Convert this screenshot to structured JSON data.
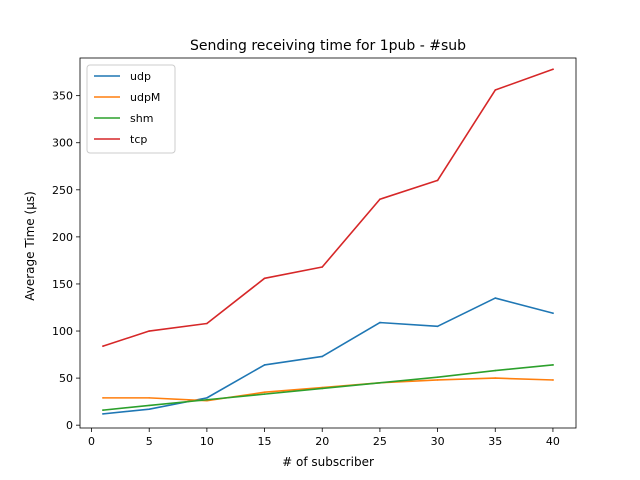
{
  "chart_data": {
    "type": "line",
    "title": "Sending receiving time for 1pub - #sub",
    "xlabel": "# of subscriber",
    "ylabel": "Average Time (µs)",
    "x": [
      1,
      5,
      10,
      15,
      20,
      25,
      30,
      35,
      40
    ],
    "xlim": [
      -1,
      42
    ],
    "ylim": [
      -3,
      390
    ],
    "xticks": [
      0,
      5,
      10,
      15,
      20,
      25,
      30,
      35,
      40
    ],
    "yticks": [
      0,
      50,
      100,
      150,
      200,
      250,
      300,
      350
    ],
    "grid": false,
    "legend_position": "top-left",
    "series": [
      {
        "name": "udp",
        "color": "#1f77b4",
        "values": [
          12,
          17,
          29,
          64,
          73,
          109,
          105,
          135,
          119
        ]
      },
      {
        "name": "udpM",
        "color": "#ff7f0e",
        "values": [
          29,
          29,
          26,
          35,
          40,
          45,
          48,
          50,
          48
        ]
      },
      {
        "name": "shm",
        "color": "#2ca02c",
        "values": [
          16,
          21,
          27,
          33,
          39,
          45,
          51,
          58,
          64
        ]
      },
      {
        "name": "tcp",
        "color": "#d62728",
        "values": [
          84,
          100,
          108,
          156,
          168,
          240,
          260,
          356,
          378
        ]
      }
    ]
  }
}
